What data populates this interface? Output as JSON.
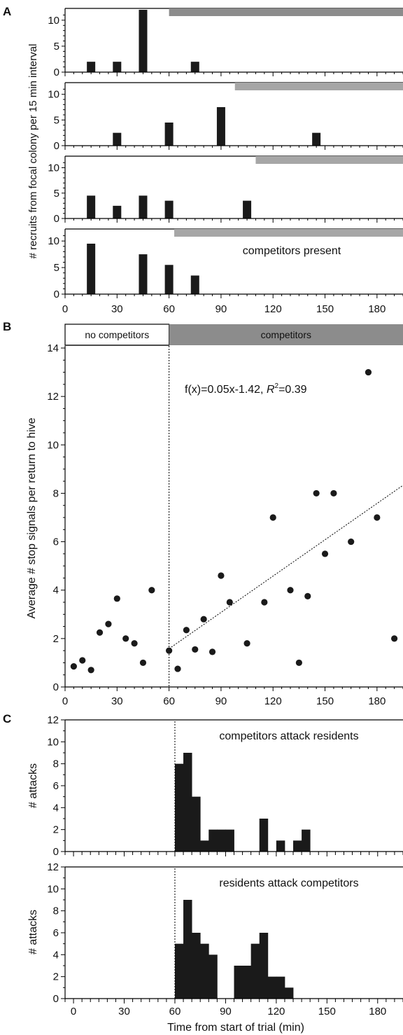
{
  "colors": {
    "bar": "#1a1a1a",
    "band_light": "#a6a6a6",
    "band_dark": "#8c8c8c",
    "dashed_line": "#7f7f7f",
    "point": "#1a1a1a"
  },
  "chart_data": [
    {
      "panel_label": "A",
      "type": "bar",
      "ylabel": "# recruits from focal colony per 15 min interval",
      "xlim": [
        0,
        195
      ],
      "x_ticks": [
        "0",
        "30",
        "60",
        "90",
        "120",
        "150",
        "180"
      ],
      "grid": false,
      "subpanels": [
        {
          "ylim": [
            0,
            12
          ],
          "y_ticks": [
            "0",
            "5",
            "10"
          ],
          "band_start": 60,
          "band_label": "",
          "bars": [
            {
              "x": 15,
              "y": 2
            },
            {
              "x": 30,
              "y": 2
            },
            {
              "x": 45,
              "y": 12
            },
            {
              "x": 75,
              "y": 2
            }
          ]
        },
        {
          "ylim": [
            0,
            12
          ],
          "y_ticks": [
            "0",
            "5",
            "10"
          ],
          "band_start": 98,
          "band_label": "",
          "bars": [
            {
              "x": 30,
              "y": 2.5
            },
            {
              "x": 60,
              "y": 4.5
            },
            {
              "x": 90,
              "y": 7.5
            },
            {
              "x": 145,
              "y": 2.5
            }
          ]
        },
        {
          "ylim": [
            0,
            12
          ],
          "y_ticks": [
            "0",
            "5",
            "10"
          ],
          "band_start": 110,
          "band_label": "",
          "bars": [
            {
              "x": 15,
              "y": 4.5
            },
            {
              "x": 30,
              "y": 2.5
            },
            {
              "x": 45,
              "y": 4.5
            },
            {
              "x": 60,
              "y": 3.5
            },
            {
              "x": 105,
              "y": 3.5
            }
          ]
        },
        {
          "ylim": [
            0,
            12
          ],
          "y_ticks": [
            "0",
            "5",
            "10"
          ],
          "band_start": 63,
          "band_label": "competitors present",
          "bars": [
            {
              "x": 15,
              "y": 9.5
            },
            {
              "x": 45,
              "y": 7.5
            },
            {
              "x": 60,
              "y": 5.5
            },
            {
              "x": 75,
              "y": 3.5
            }
          ]
        }
      ]
    },
    {
      "panel_label": "B",
      "type": "scatter",
      "ylabel": "Average # stop signals per return to hive",
      "xlim": [
        0,
        195
      ],
      "ylim": [
        0,
        14
      ],
      "x_ticks": [
        "0",
        "30",
        "60",
        "90",
        "120",
        "150",
        "180"
      ],
      "y_ticks": [
        "0",
        "2",
        "4",
        "6",
        "8",
        "10",
        "12",
        "14"
      ],
      "grid": false,
      "header_left": "no competitors",
      "header_right": "competitors",
      "divider_x": 60,
      "fit_text": "f(x)=0.05x-1.42, ",
      "fit_r2_label": "R",
      "fit_r2_sup": "2",
      "fit_r2_value": "=0.39",
      "fit": {
        "slope": 0.05,
        "intercept": -1.42,
        "x_range": [
          60,
          195
        ]
      },
      "points": [
        {
          "x": 5,
          "y": 0.85
        },
        {
          "x": 10,
          "y": 1.1
        },
        {
          "x": 15,
          "y": 0.7
        },
        {
          "x": 20,
          "y": 2.25
        },
        {
          "x": 25,
          "y": 2.6
        },
        {
          "x": 30,
          "y": 3.65
        },
        {
          "x": 35,
          "y": 2.0
        },
        {
          "x": 40,
          "y": 1.8
        },
        {
          "x": 45,
          "y": 1.0
        },
        {
          "x": 50,
          "y": 4.0
        },
        {
          "x": 60,
          "y": 1.5
        },
        {
          "x": 65,
          "y": 0.75
        },
        {
          "x": 70,
          "y": 2.35
        },
        {
          "x": 75,
          "y": 1.55
        },
        {
          "x": 80,
          "y": 2.8
        },
        {
          "x": 85,
          "y": 1.45
        },
        {
          "x": 90,
          "y": 4.6
        },
        {
          "x": 95,
          "y": 3.5
        },
        {
          "x": 105,
          "y": 1.8
        },
        {
          "x": 115,
          "y": 3.5
        },
        {
          "x": 120,
          "y": 7.0
        },
        {
          "x": 130,
          "y": 4.0
        },
        {
          "x": 135,
          "y": 1.0
        },
        {
          "x": 140,
          "y": 3.75
        },
        {
          "x": 145,
          "y": 8.0
        },
        {
          "x": 150,
          "y": 5.5
        },
        {
          "x": 155,
          "y": 8.0
        },
        {
          "x": 165,
          "y": 6.0
        },
        {
          "x": 175,
          "y": 13.0
        },
        {
          "x": 180,
          "y": 7.0
        },
        {
          "x": 190,
          "y": 2.0
        }
      ]
    },
    {
      "panel_label": "C",
      "type": "bar",
      "xlabel": "Time from start of trial (min)",
      "xlim": [
        -5,
        195
      ],
      "x_ticks": [
        "0",
        "30",
        "60",
        "90",
        "120",
        "150",
        "180"
      ],
      "grid": false,
      "divider_x": 60,
      "subpanels": [
        {
          "title": "competitors attack residents",
          "ylabel": "# attacks",
          "ylim": [
            0,
            12
          ],
          "y_ticks": [
            "0",
            "2",
            "4",
            "6",
            "8",
            "10",
            "12"
          ],
          "bin_width": 5,
          "bins": [
            {
              "x0": 60,
              "y": 8
            },
            {
              "x0": 65,
              "y": 9
            },
            {
              "x0": 70,
              "y": 5
            },
            {
              "x0": 75,
              "y": 1
            },
            {
              "x0": 80,
              "y": 2
            },
            {
              "x0": 85,
              "y": 2
            },
            {
              "x0": 90,
              "y": 2
            },
            {
              "x0": 95,
              "y": 0
            },
            {
              "x0": 100,
              "y": 0
            },
            {
              "x0": 105,
              "y": 0
            },
            {
              "x0": 110,
              "y": 3
            },
            {
              "x0": 115,
              "y": 0
            },
            {
              "x0": 120,
              "y": 1
            },
            {
              "x0": 125,
              "y": 0
            },
            {
              "x0": 130,
              "y": 1
            },
            {
              "x0": 135,
              "y": 2
            }
          ]
        },
        {
          "title": "residents attack competitors",
          "ylabel": "# attacks",
          "ylim": [
            0,
            12
          ],
          "y_ticks": [
            "0",
            "2",
            "4",
            "6",
            "8",
            "10",
            "12"
          ],
          "bin_width": 5,
          "bins": [
            {
              "x0": 60,
              "y": 5
            },
            {
              "x0": 65,
              "y": 9
            },
            {
              "x0": 70,
              "y": 6
            },
            {
              "x0": 75,
              "y": 5
            },
            {
              "x0": 80,
              "y": 4
            },
            {
              "x0": 85,
              "y": 0
            },
            {
              "x0": 90,
              "y": 0
            },
            {
              "x0": 95,
              "y": 3
            },
            {
              "x0": 100,
              "y": 3
            },
            {
              "x0": 105,
              "y": 5
            },
            {
              "x0": 110,
              "y": 6
            },
            {
              "x0": 115,
              "y": 2
            },
            {
              "x0": 120,
              "y": 2
            },
            {
              "x0": 125,
              "y": 1
            }
          ]
        }
      ]
    }
  ]
}
